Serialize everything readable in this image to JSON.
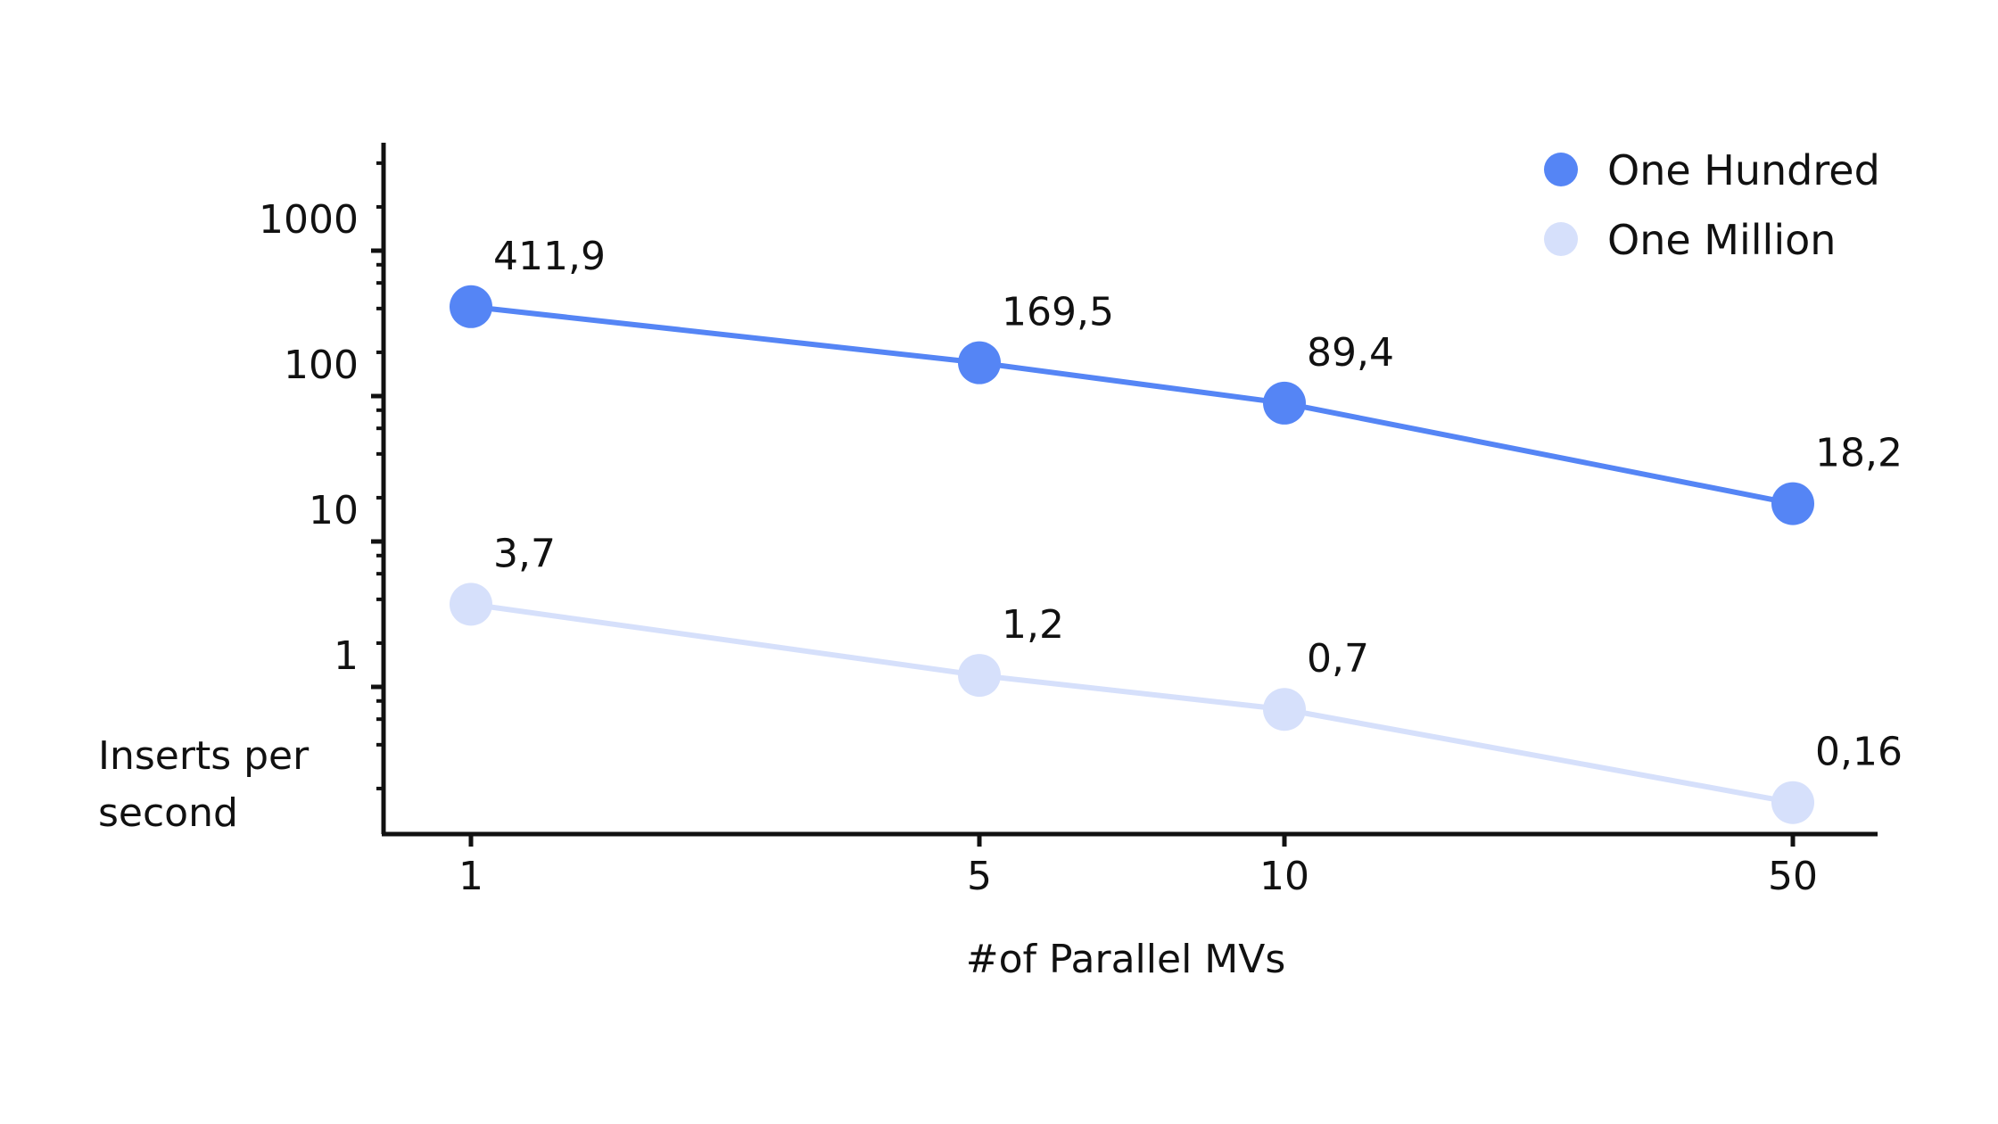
{
  "chart_data": {
    "type": "line",
    "xlabel": "#of Parallel MVs",
    "ylabel_lines": [
      "Inserts per",
      "second"
    ],
    "y_scale": "log",
    "y_ticks": [
      {
        "label": "1000",
        "value": 1000
      },
      {
        "label": "100",
        "value": 100
      },
      {
        "label": "10",
        "value": 10
      },
      {
        "label": "1",
        "value": 1
      }
    ],
    "x_categories": [
      "1",
      "5",
      "10",
      "50"
    ],
    "series": [
      {
        "name": "One Hundred",
        "color": "#5585f5",
        "values": [
          411.9,
          169.5,
          89.4,
          18.2
        ],
        "labels": [
          "411,9",
          "169,5",
          "89,4",
          "18,2"
        ]
      },
      {
        "name": "One Million",
        "color": "#d6e0fb",
        "values": [
          3.7,
          1.2,
          0.7,
          0.16
        ],
        "labels": [
          "3,7",
          "1,2",
          "0,7",
          "0,16"
        ]
      }
    ],
    "legend_position": "top-right",
    "grid": false
  }
}
